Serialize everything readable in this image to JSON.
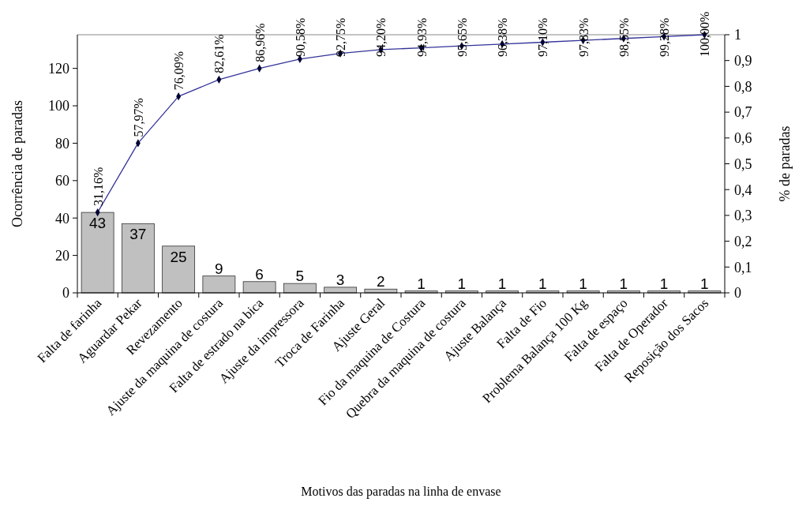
{
  "chart_data": {
    "type": "bar",
    "xlabel": "Motivos das paradas na linha de envase",
    "ylabel": "Ocorrência de paradas",
    "y2label": "% de paradas",
    "categories": [
      "Falta de farinha",
      "Aguardar Pekar",
      "Revezamento",
      "Ajuste da maquina de costura",
      "Falta de estrado na bica",
      "Ajuste da impressora",
      "Troca de Farinha",
      "Ajuste Geral",
      "Fio da maquina de Costura",
      "Quebra da maquina de costura",
      "Ajuste Balança",
      "Falta de Fio",
      "Problema Balança 100 Kg",
      "Falta de espaço",
      "Falta de Operador",
      "Reposição dos Sacos"
    ],
    "series": [
      {
        "color": "#c0c0c0",
        "values": [
          43,
          37,
          25,
          9,
          6,
          5,
          3,
          2,
          1,
          1,
          1,
          1,
          1,
          1,
          1,
          1
        ],
        "value_labels": [
          "43",
          "37",
          "25",
          "9",
          "6",
          "5",
          "3",
          "2",
          "1",
          "1",
          "1",
          "1",
          "1",
          "1",
          "1",
          "1"
        ]
      },
      {
        "type": "line",
        "axis": "y2",
        "color": "#333399",
        "marker": "diamond",
        "line_style": "solid",
        "values": [
          0.3116,
          0.5797,
          0.7609,
          0.8261,
          0.8696,
          0.9058,
          0.9275,
          0.942,
          0.9493,
          0.9565,
          0.9638,
          0.971,
          0.9783,
          0.9855,
          0.9928,
          1.0
        ],
        "value_labels": [
          "31,16%",
          "57,97%",
          "76,09%",
          "82,61%",
          "86,96%",
          "90,58%",
          "92,75%",
          "94,20%",
          "94,93%",
          "95,65%",
          "96,38%",
          "97,10%",
          "97,83%",
          "98,55%",
          "99,28%",
          "100,00%"
        ]
      }
    ],
    "ylim": [
      0,
      138
    ],
    "yticks": [
      0,
      20,
      40,
      60,
      80,
      100,
      120
    ],
    "y2lim": [
      0,
      1
    ],
    "y2ticks": [
      0,
      {
        "value": 0.1,
        "label": "0,1"
      },
      {
        "value": 0.2,
        "label": "0,2"
      },
      {
        "value": 0.3,
        "label": "0,3"
      },
      {
        "value": 0.4,
        "label": "0,4"
      },
      {
        "value": 0.5,
        "label": "0,5"
      },
      {
        "value": 0.6,
        "label": "0,6"
      },
      {
        "value": 0.7,
        "label": "0,7"
      },
      {
        "value": 0.8,
        "label": "0,8"
      },
      {
        "value": 0.9,
        "label": "0,9"
      },
      1
    ],
    "grid": false
  }
}
